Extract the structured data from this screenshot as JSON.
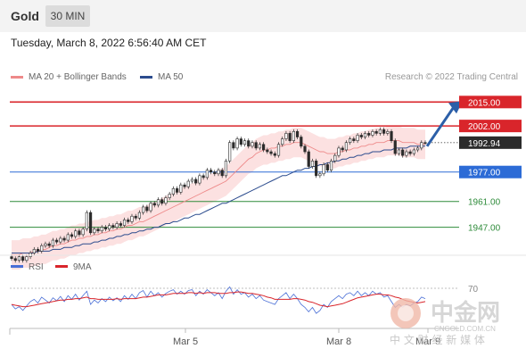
{
  "header": {
    "title": "Gold",
    "timeframe": "30 MIN"
  },
  "datetime": "Tuesday, March 8, 2022 6:56:40 AM CET",
  "legend": {
    "items": [
      {
        "label": "MA 20 + Bollinger Bands",
        "color": "#ee8a8a"
      },
      {
        "label": "MA 50",
        "color": "#2c4c8e"
      }
    ],
    "research": "Research © 2022 Trading Central"
  },
  "levels": [
    {
      "label": "2015.00",
      "value": 2015.0,
      "kind": "resistance"
    },
    {
      "label": "2002.00",
      "value": 2002.0,
      "kind": "resistance"
    },
    {
      "label": "1992.94",
      "value": 1992.94,
      "kind": "last"
    },
    {
      "label": "1977.00",
      "value": 1977.0,
      "kind": "pivot"
    },
    {
      "label": "1961.00",
      "value": 1961.0,
      "kind": "support"
    },
    {
      "label": "1947.00",
      "value": 1947.0,
      "kind": "support"
    }
  ],
  "colors": {
    "resistance": "#d9252b",
    "pivot": "#2c6bd6",
    "support": "#2e8b3a",
    "last": "#2b2b2b",
    "rsi": "#4a6fd6",
    "ma9": "#d9252b",
    "candle": "#2b2b2b"
  },
  "rsi_panel": {
    "legend": [
      {
        "label": "RSI",
        "color": "#4a6fd6"
      },
      {
        "label": "9MA",
        "color": "#d9252b"
      }
    ],
    "level_label": "70",
    "level": 70
  },
  "x_labels": [
    "Mar 5",
    "Mar 8",
    "Mar 9"
  ],
  "watermark": {
    "brand": "中金网",
    "site": "CNGOLD.COM.CN",
    "slogan": "中 文 财 经 新 媒 体"
  },
  "chart_data": {
    "type": "candlestick",
    "symbol": "Gold",
    "interval": "30 MIN",
    "ylim": [
      1925,
      2020
    ],
    "close": [
      1930,
      1929,
      1931,
      1929,
      1931,
      1933,
      1935,
      1934,
      1937,
      1938,
      1937,
      1940,
      1939,
      1941,
      1940,
      1943,
      1942,
      1945,
      1943,
      1946,
      1955,
      1944,
      1946,
      1945,
      1947,
      1946,
      1948,
      1947,
      1949,
      1948,
      1951,
      1950,
      1953,
      1952,
      1955,
      1958,
      1956,
      1960,
      1959,
      1962,
      1960,
      1963,
      1965,
      1968,
      1966,
      1970,
      1969,
      1972,
      1973,
      1971,
      1975,
      1974,
      1978,
      1977,
      1976,
      1978,
      1975,
      1983,
      1993,
      1990,
      1995,
      1992,
      1994,
      1991,
      1993,
      1990,
      1992,
      1989,
      1988,
      1987,
      1986,
      1992,
      1995,
      1998,
      1994,
      1999,
      1996,
      1991,
      1988,
      1980,
      1983,
      1975,
      1976,
      1981,
      1978,
      1983,
      1986,
      1990,
      1989,
      1993,
      1995,
      1994,
      1997,
      1996,
      1998,
      1997,
      1999,
      1998,
      2000,
      1998,
      1999,
      1994,
      1987,
      1989,
      1986,
      1988,
      1987,
      1989,
      1990,
      1993,
      1992.94
    ],
    "ma20": [
      1932,
      1932,
      1932,
      1933,
      1933,
      1933,
      1934,
      1934,
      1935,
      1935,
      1936,
      1937,
      1937,
      1938,
      1938,
      1939,
      1940,
      1940,
      1941,
      1941,
      1942,
      1942,
      1943,
      1943,
      1944,
      1944,
      1945,
      1945,
      1946,
      1946,
      1947,
      1948,
      1948,
      1949,
      1950,
      1950,
      1951,
      1952,
      1953,
      1954,
      1955,
      1956,
      1957,
      1958,
      1959,
      1960,
      1961,
      1962,
      1963,
      1964,
      1965,
      1966,
      1967,
      1968,
      1969,
      1970,
      1971,
      1972,
      1974,
      1976,
      1978,
      1980,
      1982,
      1984,
      1985,
      1987,
      1988,
      1989,
      1989,
      1990,
      1990,
      1991,
      1991,
      1992,
      1992,
      1993,
      1993,
      1993,
      1992,
      1991,
      1990,
      1989,
      1988,
      1988,
      1987,
      1987,
      1987,
      1988,
      1988,
      1989,
      1989,
      1990,
      1990,
      1991,
      1991,
      1992,
      1992,
      1993,
      1993,
      1993,
      1994,
      1994,
      1994,
      1994,
      1993,
      1993,
      1993,
      1993,
      1992,
      1992,
      1992
    ],
    "ma50": [
      1933,
      1933,
      1933,
      1933,
      1933,
      1933,
      1933,
      1934,
      1934,
      1934,
      1934,
      1935,
      1935,
      1935,
      1936,
      1936,
      1936,
      1937,
      1937,
      1938,
      1938,
      1938,
      1939,
      1939,
      1940,
      1940,
      1941,
      1941,
      1942,
      1942,
      1943,
      1943,
      1944,
      1944,
      1945,
      1945,
      1946,
      1946,
      1947,
      1947,
      1948,
      1949,
      1949,
      1950,
      1950,
      1951,
      1952,
      1952,
      1953,
      1954,
      1954,
      1955,
      1956,
      1957,
      1958,
      1959,
      1960,
      1960,
      1961,
      1962,
      1963,
      1964,
      1965,
      1966,
      1967,
      1968,
      1969,
      1970,
      1971,
      1972,
      1973,
      1974,
      1975,
      1975,
      1976,
      1977,
      1978,
      1978,
      1979,
      1979,
      1980,
      1980,
      1981,
      1981,
      1982,
      1982,
      1983,
      1983,
      1984,
      1984,
      1985,
      1985,
      1986,
      1986,
      1987,
      1987,
      1988,
      1988,
      1988,
      1989,
      1989,
      1989,
      1990,
      1990,
      1990,
      1990,
      1991,
      1991,
      1991,
      1991,
      1991
    ],
    "bb_width": 8,
    "rsi": [
      48,
      42,
      45,
      40,
      46,
      52,
      55,
      50,
      58,
      54,
      50,
      57,
      53,
      59,
      52,
      60,
      55,
      62,
      54,
      60,
      66,
      48,
      54,
      50,
      56,
      52,
      58,
      53,
      57,
      52,
      60,
      55,
      62,
      56,
      64,
      67,
      58,
      66,
      60,
      64,
      58,
      63,
      66,
      68,
      62,
      66,
      62,
      67,
      68,
      60,
      66,
      62,
      68,
      64,
      60,
      64,
      56,
      66,
      72,
      62,
      68,
      62,
      64,
      58,
      62,
      56,
      60,
      54,
      52,
      50,
      48,
      56,
      60,
      64,
      56,
      62,
      56,
      48,
      44,
      38,
      44,
      36,
      40,
      48,
      44,
      52,
      56,
      60,
      56,
      62,
      64,
      60,
      66,
      60,
      64,
      60,
      66,
      62,
      64,
      58,
      60,
      52,
      44,
      48,
      44,
      48,
      46,
      50,
      52,
      58,
      56
    ],
    "rsi_ma9": [
      48,
      47,
      46,
      45,
      45,
      46,
      47,
      48,
      49,
      50,
      51,
      52,
      53,
      54,
      54,
      55,
      55,
      56,
      56,
      57,
      58,
      56,
      56,
      55,
      55,
      55,
      55,
      55,
      56,
      55,
      56,
      56,
      56,
      56,
      57,
      58,
      58,
      59,
      60,
      61,
      61,
      61,
      62,
      63,
      63,
      63,
      63,
      64,
      64,
      63,
      64,
      63,
      64,
      64,
      64,
      63,
      63,
      63,
      64,
      64,
      65,
      65,
      64,
      63,
      63,
      62,
      61,
      60,
      58,
      57,
      55,
      55,
      55,
      55,
      55,
      56,
      56,
      55,
      54,
      52,
      51,
      49,
      47,
      46,
      45,
      46,
      47,
      48,
      49,
      51,
      53,
      55,
      57,
      58,
      59,
      60,
      61,
      62,
      62,
      61,
      61,
      60,
      58,
      57,
      55,
      53,
      52,
      51,
      50,
      51,
      52
    ]
  }
}
